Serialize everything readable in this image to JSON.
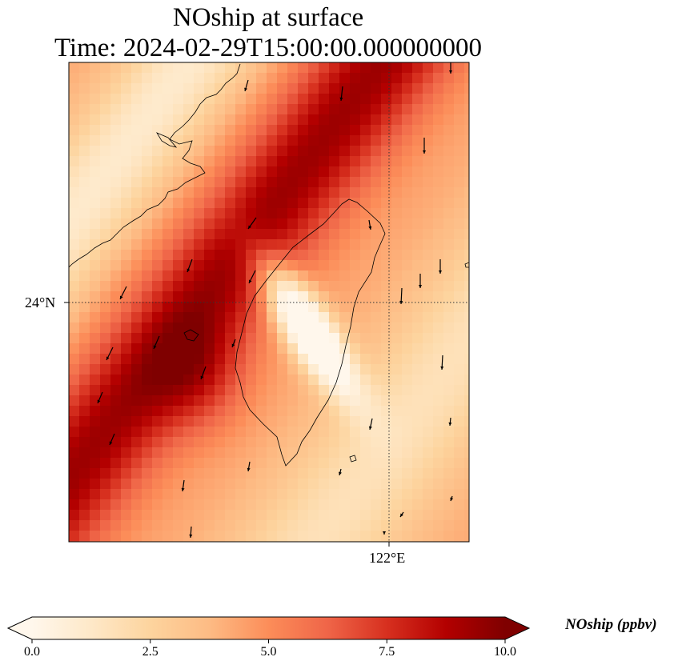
{
  "title_line1": "NOship at surface",
  "title_line2": "Time: 2024-02-29T15:00:00.000000000",
  "map": {
    "variable": "NOship",
    "level": "surface",
    "lat_tick_label": "24°N",
    "lon_tick_label": "122°E",
    "gridlines": "dotted",
    "features": [
      "coastlines",
      "wind vectors"
    ]
  },
  "colorbar": {
    "label": "NOship (ppbv)",
    "ticks": [
      "0.0",
      "2.5",
      "5.0",
      "7.5",
      "10.0"
    ],
    "min": 0,
    "max": 10,
    "extend": "both",
    "colormap": "OrRd",
    "colors": [
      "#fff7ec",
      "#fee8c8",
      "#fdd49e",
      "#fdbb84",
      "#fc8d59",
      "#ef6548",
      "#d7301f",
      "#b30000",
      "#7f0000"
    ]
  }
}
